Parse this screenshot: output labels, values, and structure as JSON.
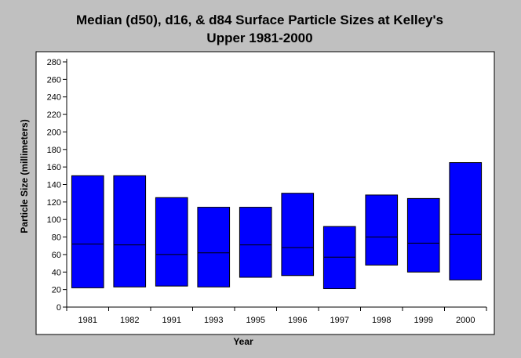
{
  "chart_data": {
    "type": "bar",
    "subtype": "floating-range (d16 to d84) with median (d50) marker",
    "title_lines": [
      "Median (d50), d16, & d84 Surface Particle Sizes at Kelley's",
      "Upper 1981-2000"
    ],
    "xlabel": "Year",
    "ylabel": "Particle Size (millimeters)",
    "ylim": [
      0,
      280
    ],
    "yticks": [
      0,
      20,
      40,
      60,
      80,
      100,
      120,
      140,
      160,
      180,
      200,
      220,
      240,
      260,
      280
    ],
    "categories": [
      "1981",
      "1982",
      "1991",
      "1993",
      "1995",
      "1996",
      "1997",
      "1998",
      "1999",
      "2000"
    ],
    "series": [
      {
        "key": "d16",
        "values": [
          22,
          23,
          24,
          23,
          34,
          36,
          21,
          48,
          40,
          31
        ]
      },
      {
        "key": "d50",
        "values": [
          72,
          71,
          60,
          62,
          71,
          68,
          57,
          80,
          73,
          83
        ]
      },
      {
        "key": "d84",
        "values": [
          150,
          150,
          125,
          114,
          114,
          130,
          92,
          128,
          124,
          165
        ]
      }
    ],
    "grid": false,
    "legend": "none",
    "colors": {
      "bar_fill": "#0000ff",
      "bar_stroke": "#000000",
      "median_line": "#000000",
      "plot_background": "#ffffff",
      "page_background": "#c0c0c0"
    }
  }
}
